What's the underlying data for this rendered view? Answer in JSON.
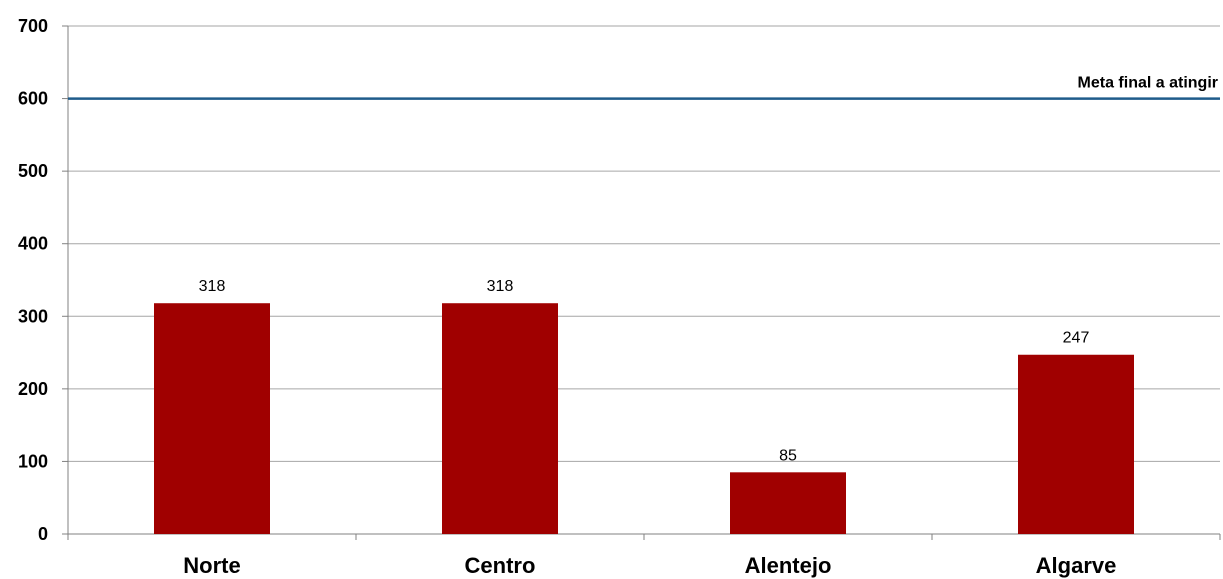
{
  "chart_data": {
    "type": "bar",
    "categories": [
      "Norte",
      "Centro",
      "Alentejo",
      "Algarve"
    ],
    "values": [
      318,
      318,
      85,
      247
    ],
    "data_labels": [
      "318",
      "318",
      "85",
      "247"
    ],
    "ylim": [
      0,
      700
    ],
    "yticks": [
      0,
      100,
      200,
      300,
      400,
      500,
      600,
      700
    ],
    "grid": true,
    "legend": "none",
    "bar_color": "#a00000",
    "target_line": {
      "value": 600,
      "label": "Meta final a atingir",
      "color": "#1f5c8b"
    },
    "title": "",
    "xlabel": "",
    "ylabel": ""
  }
}
